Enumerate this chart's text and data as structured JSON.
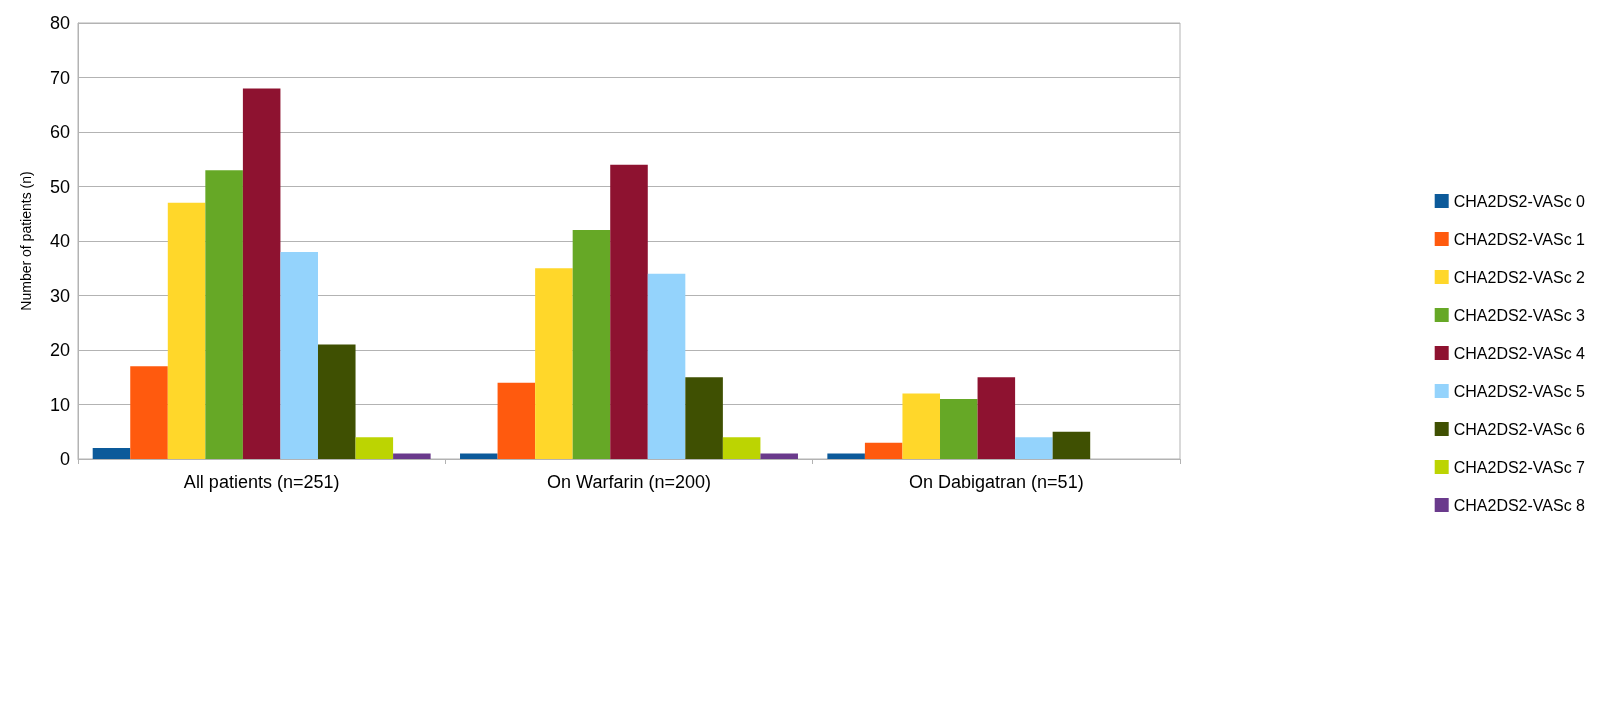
{
  "chart_data": {
    "type": "bar",
    "ylabel": "Number of patients (n)",
    "categories": [
      "All patients (n=251)",
      "On Warfarin (n=200)",
      "On Dabigatran (n=51)"
    ],
    "series": [
      {
        "name": "CHA2DS2-VASc 0",
        "color": "#0c5a9a",
        "values": [
          2,
          1,
          1
        ]
      },
      {
        "name": "CHA2DS2-VASc 1",
        "color": "#ff5a0e",
        "values": [
          17,
          14,
          3
        ]
      },
      {
        "name": "CHA2DS2-VASc 2",
        "color": "#ffd72a",
        "values": [
          47,
          35,
          12
        ]
      },
      {
        "name": "CHA2DS2-VASc 3",
        "color": "#66a826",
        "values": [
          53,
          42,
          11
        ]
      },
      {
        "name": "CHA2DS2-VASc 4",
        "color": "#8e1230",
        "values": [
          68,
          54,
          15
        ]
      },
      {
        "name": "CHA2DS2-VASc 5",
        "color": "#94d3fc",
        "values": [
          38,
          34,
          4
        ]
      },
      {
        "name": "CHA2DS2-VASc 6",
        "color": "#3f5002",
        "values": [
          21,
          15,
          5
        ]
      },
      {
        "name": "CHA2DS2-VASc 7",
        "color": "#bcd402",
        "values": [
          4,
          4,
          0
        ]
      },
      {
        "name": "CHA2DS2-VASc 8",
        "color": "#6a3a8c",
        "values": [
          1,
          1,
          0
        ]
      }
    ],
    "ylim": [
      0,
      80
    ],
    "yticks": [
      0,
      10,
      20,
      30,
      40,
      50,
      60,
      70,
      80
    ],
    "grid": "y",
    "legend": "right"
  }
}
